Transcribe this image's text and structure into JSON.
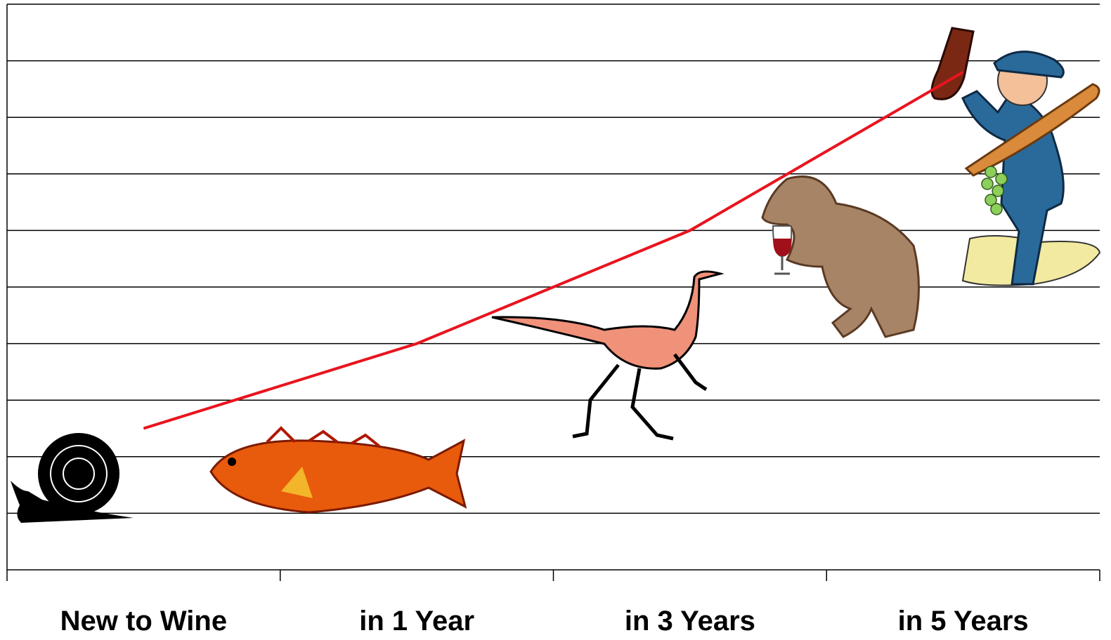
{
  "chart_data": {
    "type": "line",
    "categories": [
      "New to Wine",
      "in 1 Year",
      "in 3 Years",
      "in 5 Years"
    ],
    "series": [
      {
        "color": "#e8141e",
        "values": [
          2.5,
          4.0,
          6.0,
          8.8
        ]
      }
    ],
    "ylim": [
      0,
      10
    ],
    "yticks": [
      0,
      1,
      2,
      3,
      4,
      5,
      6,
      7,
      8,
      9,
      10
    ],
    "grid": true
  }
}
